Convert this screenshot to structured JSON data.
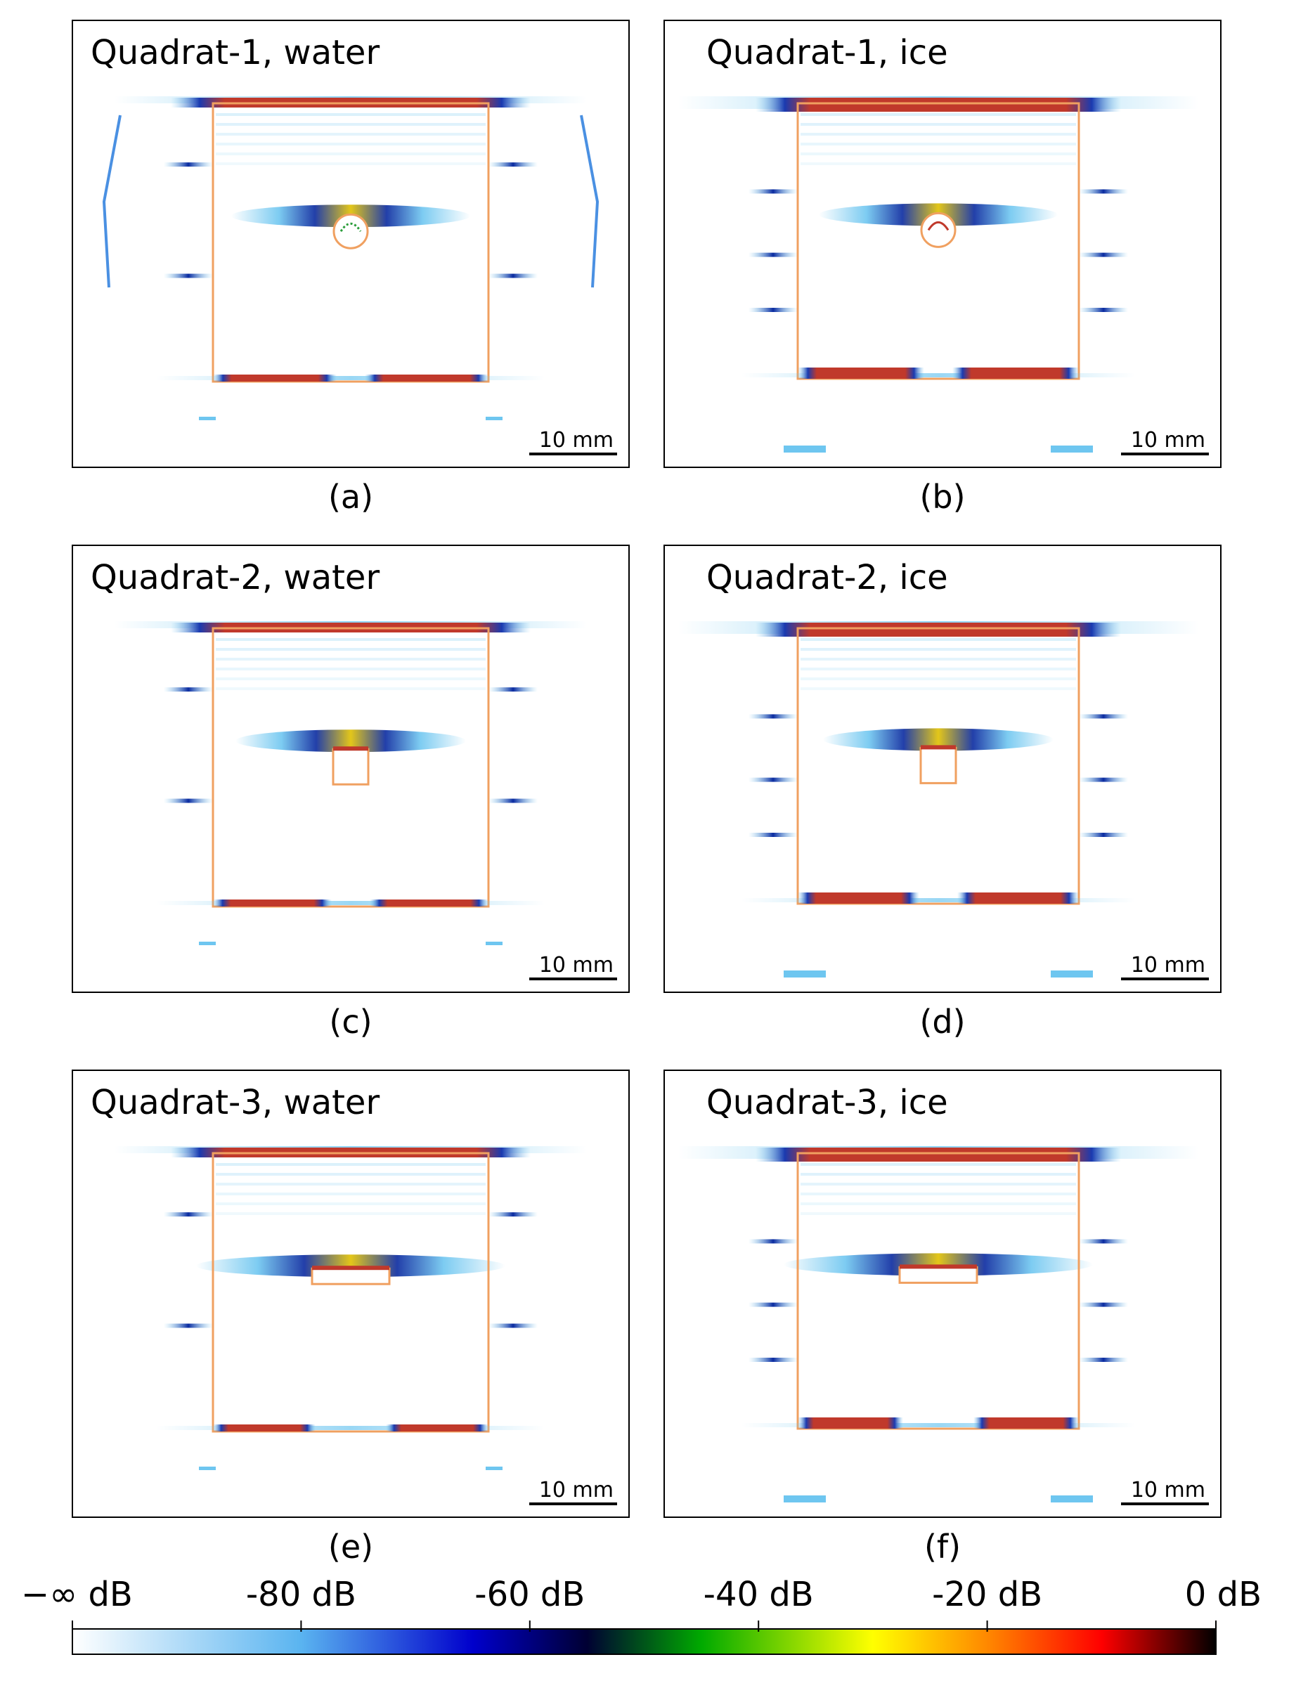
{
  "panels": [
    {
      "id": "a",
      "title": "Quadrat-1, water",
      "caption": "(a)",
      "scale_label": "10 mm",
      "medium": "water",
      "defect": "circle"
    },
    {
      "id": "b",
      "title": "Quadrat-1, ice",
      "caption": "(b)",
      "scale_label": "10 mm",
      "medium": "ice",
      "defect": "circle"
    },
    {
      "id": "c",
      "title": "Quadrat-2, water",
      "caption": "(c)",
      "scale_label": "10 mm",
      "medium": "water",
      "defect": "square"
    },
    {
      "id": "d",
      "title": "Quadrat-2, ice",
      "caption": "(d)",
      "scale_label": "10 mm",
      "medium": "ice",
      "defect": "square"
    },
    {
      "id": "e",
      "title": "Quadrat-3, water",
      "caption": "(e)",
      "scale_label": "10 mm",
      "medium": "water",
      "defect": "slot"
    },
    {
      "id": "f",
      "title": "Quadrat-3, ice",
      "caption": "(f)",
      "scale_label": "10 mm",
      "medium": "ice",
      "defect": "slot"
    }
  ],
  "colorbar": {
    "ticks": [
      "−∞ dB",
      "-80 dB",
      "-60 dB",
      "-40 dB",
      "-20 dB",
      "0 dB"
    ],
    "colors": [
      "#ffffff",
      "#5ab4f0",
      "#0000cc",
      "#000033",
      "#00aa00",
      "#ffff00",
      "#ff8800",
      "#ff0000",
      "#000000"
    ]
  },
  "colors": {
    "outline": "#f0a060",
    "transducer": "#4a90e2",
    "strong": "#c0392b",
    "medium": "#0a2aa0",
    "weak": "#6ec6f0"
  }
}
